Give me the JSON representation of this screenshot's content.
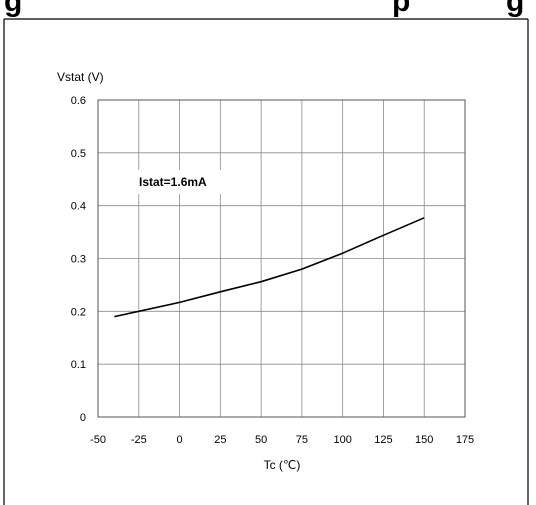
{
  "header": {
    "text_fragment_left": "g",
    "text_fragment_right": "p",
    "text_fragment_end": "g"
  },
  "chart_data": {
    "type": "line",
    "title": "",
    "xlabel": "Tc (℃)",
    "ylabel": "Vstat (V)",
    "annotation": "Istat=1.6mA",
    "xlim": [
      -50,
      175
    ],
    "ylim": [
      0,
      0.6
    ],
    "x_ticks": [
      "-50",
      "-25",
      "0",
      "25",
      "50",
      "75",
      "100",
      "125",
      "150",
      "175"
    ],
    "y_ticks": [
      "0",
      "0.1",
      "0.2",
      "0.3",
      "0.4",
      "0.5",
      "0.6"
    ],
    "grid": true,
    "series": [
      {
        "x": [
          -40,
          -25,
          0,
          25,
          50,
          75,
          100,
          125,
          150
        ],
        "y": [
          0.19,
          0.2,
          0.217,
          0.237,
          0.256,
          0.28,
          0.31,
          0.344,
          0.377
        ]
      }
    ]
  }
}
